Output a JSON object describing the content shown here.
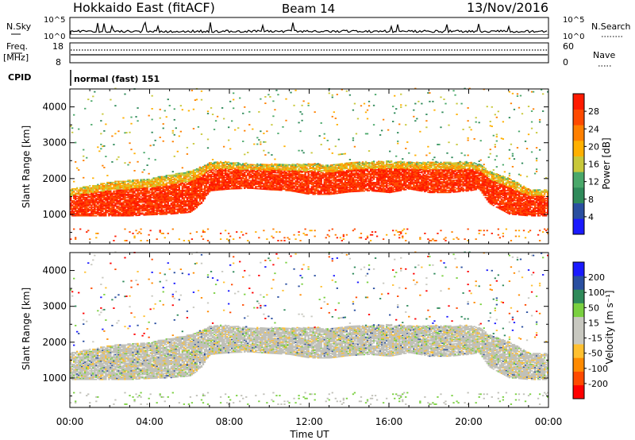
{
  "header": {
    "station": "Hokkaido East (fitACF)",
    "beam": "Beam 14",
    "date": "13/Nov/2016"
  },
  "strip_labels": {
    "nsky": "N.Sky",
    "nsky_ticks": [
      "10^5",
      "10^0"
    ],
    "nsearch": "N.Search",
    "nsearch_ticks": [
      "10^5",
      "10^0"
    ],
    "freq_top": "Freq.",
    "freq_unit": "[MHz]",
    "freq_ticks": [
      "18",
      "8"
    ],
    "nave": "Nave",
    "nave_ticks": [
      "60",
      "0"
    ],
    "cpid": "CPID",
    "cpid_text": "normal (fast) 151"
  },
  "colors": {
    "power_scale": [
      "#1a1aff",
      "#2a4fa0",
      "#2f8a5a",
      "#4aa86a",
      "#c8c83a",
      "#ffb000",
      "#ff8000",
      "#ff4a00",
      "#ff1a00"
    ],
    "velocity_scale": [
      "#ff0000",
      "#ff4a00",
      "#ff8a00",
      "#ffc030",
      "#c8c8c0",
      "#c8c8c0",
      "#7ad040",
      "#2f8a5a",
      "#2a4fa0",
      "#1a1aff"
    ],
    "ground_scatter": "#c0c0b8"
  },
  "chart_data": [
    {
      "type": "heatmap",
      "panel": "power",
      "title": "",
      "xlabel": "Time UT",
      "ylabel": "Slant Range [km]",
      "x_ticks": [
        "00:00",
        "04:00",
        "08:00",
        "12:00",
        "16:00",
        "20:00",
        "00:00"
      ],
      "x_range_hours": [
        0,
        24
      ],
      "y_range_km": [
        180,
        4500
      ],
      "y_ticks": [
        1000,
        2000,
        3000,
        4000
      ],
      "colorbar": {
        "label": "Power [dB]",
        "ticks": [
          4,
          8,
          12,
          16,
          20,
          24,
          28
        ],
        "range": [
          0,
          32
        ]
      },
      "main_band_edges": {
        "hours": [
          0,
          1,
          2,
          3,
          4,
          5,
          6,
          6.5,
          7,
          8,
          9,
          10,
          11,
          12,
          13,
          14,
          15,
          16,
          17,
          18,
          19,
          20,
          20.5,
          21,
          22,
          23,
          24
        ],
        "lower_km": [
          950,
          950,
          950,
          950,
          980,
          1000,
          1050,
          1250,
          1650,
          1700,
          1720,
          1680,
          1650,
          1550,
          1550,
          1620,
          1650,
          1600,
          1700,
          1600,
          1600,
          1650,
          1700,
          1300,
          1000,
          950,
          950
        ],
        "upper_km": [
          1700,
          1800,
          1900,
          1950,
          2000,
          2100,
          2200,
          2300,
          2450,
          2450,
          2400,
          2400,
          2400,
          2400,
          2380,
          2450,
          2450,
          2500,
          2450,
          2450,
          2450,
          2450,
          2400,
          2200,
          2000,
          1700,
          1700
        ]
      }
    },
    {
      "type": "heatmap",
      "panel": "velocity",
      "title": "",
      "xlabel": "Time UT",
      "ylabel": "Slant Range [km]",
      "x_ticks": [
        "00:00",
        "04:00",
        "08:00",
        "12:00",
        "16:00",
        "20:00",
        "00:00"
      ],
      "x_range_hours": [
        0,
        24
      ],
      "y_range_km": [
        180,
        4500
      ],
      "y_ticks": [
        1000,
        2000,
        3000,
        4000
      ],
      "colorbar": {
        "label": "Velocity [m s⁻¹]",
        "ticks": [
          200,
          100,
          50,
          15,
          -15,
          -50,
          -100,
          -200
        ],
        "range": [
          -250,
          250
        ]
      }
    }
  ]
}
